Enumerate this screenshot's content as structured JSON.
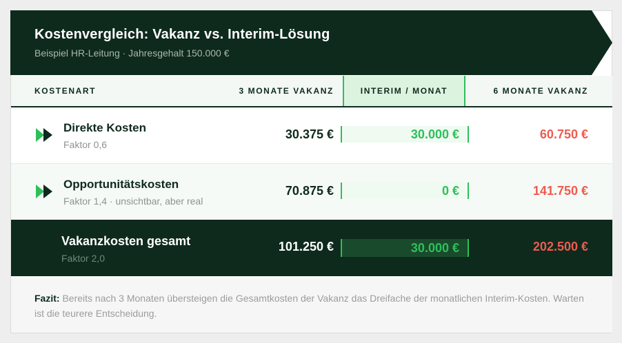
{
  "header": {
    "title": "Kostenvergleich: Vakanz vs. Interim-Lösung",
    "subtitle": "Beispiel HR-Leitung · Jahresgehalt 150.000 €"
  },
  "columns": {
    "label": "KOSTENART",
    "three_months": "3 MONATE VAKANZ",
    "interim": "INTERIM / MONAT",
    "six_months": "6 MONATE VAKANZ"
  },
  "rows": [
    {
      "label": "Direkte Kosten",
      "sub": "Faktor 0,6",
      "three_months": "30.375 €",
      "interim": "30.000 €",
      "six_months": "60.750 €",
      "icon": "double-play-icon"
    },
    {
      "label": "Opportunitätskosten",
      "sub": "Faktor 1,4 · unsichtbar, aber real",
      "three_months": "70.875 €",
      "interim": "0 €",
      "six_months": "141.750 €",
      "icon": "double-play-icon"
    }
  ],
  "total": {
    "label": "Vakanzkosten gesamt",
    "sub": "Faktor 2,0",
    "three_months": "101.250 €",
    "interim": "30.000 €",
    "six_months": "202.500 €"
  },
  "footer": {
    "prefix": "Fazit:",
    "text": " Bereits nach 3 Monaten übersteigen die Gesamtkosten der Vakanz das Dreifache der monatlichen Interim-Kosten. Warten ist die teurere Entscheidung."
  },
  "colors": {
    "dark_green": "#0e2a1c",
    "accent_green": "#2ebf5b",
    "red": "#ee5b50"
  }
}
